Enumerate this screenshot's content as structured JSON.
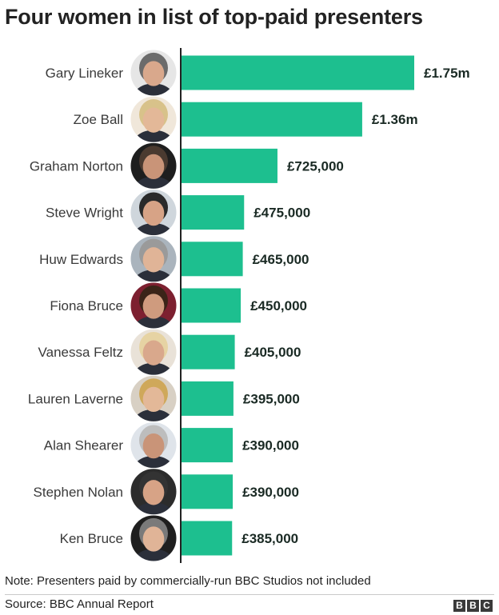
{
  "title": "Four women in list of top-paid presenters",
  "note": "Note: Presenters paid by commercially-run BBC Studios not included",
  "source": "Source: BBC Annual Report",
  "logo_letters": [
    "B",
    "B",
    "C"
  ],
  "colors": {
    "bar": "#1dbf8f",
    "axis": "#222222",
    "text": "#222222"
  },
  "chart_data": {
    "type": "bar",
    "orientation": "horizontal",
    "categories": [
      "Gary Lineker",
      "Zoe Ball",
      "Graham Norton",
      "Steve Wright",
      "Huw Edwards",
      "Fiona Bruce",
      "Vanessa Feltz",
      "Lauren Laverne",
      "Alan Shearer",
      "Stephen Nolan",
      "Ken Bruce"
    ],
    "values": [
      1750000,
      1360000,
      725000,
      475000,
      465000,
      450000,
      405000,
      395000,
      390000,
      390000,
      385000
    ],
    "data_labels": [
      "£1.75m",
      "£1.36m",
      "£725,000",
      "£475,000",
      "£465,000",
      "£450,000",
      "£405,000",
      "£395,000",
      "£390,000",
      "£390,000",
      "£385,000"
    ],
    "xlim": [
      0,
      1750000
    ],
    "grid": false,
    "legend": "none"
  }
}
